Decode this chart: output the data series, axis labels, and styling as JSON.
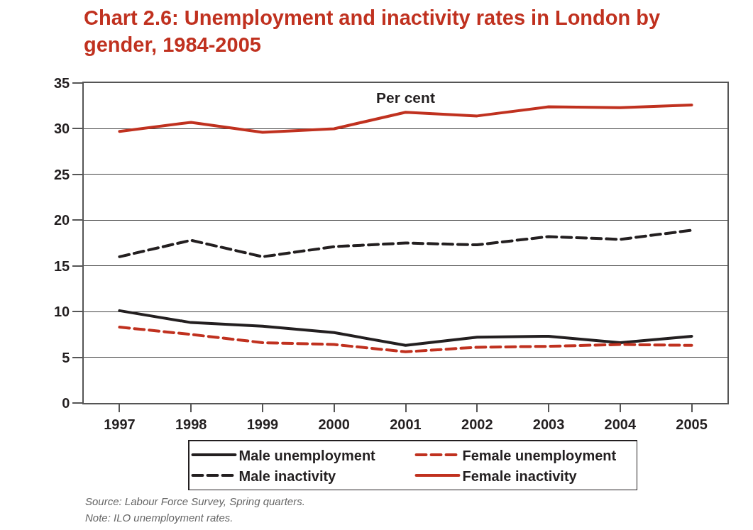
{
  "chart_data": {
    "type": "line",
    "title": "Chart 2.6: Unemployment and inactivity rates in London by gender, 1984-2005",
    "ylabel": "Per cent",
    "categories": [
      "1997",
      "1998",
      "1999",
      "2000",
      "2001",
      "2002",
      "2003",
      "2004",
      "2005"
    ],
    "series": [
      {
        "name": "Male unemployment",
        "color": "#231f20",
        "line_style": "solid",
        "values": [
          10.1,
          8.8,
          8.4,
          7.7,
          6.3,
          7.2,
          7.3,
          6.6,
          7.3
        ]
      },
      {
        "name": "Female unemployment",
        "color": "#c0311f",
        "line_style": "dashed",
        "values": [
          8.3,
          7.5,
          6.6,
          6.4,
          5.6,
          6.1,
          6.2,
          6.4,
          6.3
        ]
      },
      {
        "name": "Male inactivity",
        "color": "#231f20",
        "line_style": "dashed",
        "values": [
          16.0,
          17.8,
          16.0,
          17.1,
          17.5,
          17.3,
          18.2,
          17.9,
          18.9
        ]
      },
      {
        "name": "Female inactivity",
        "color": "#c0311f",
        "line_style": "solid",
        "values": [
          29.7,
          30.7,
          29.6,
          30.0,
          31.8,
          31.4,
          32.4,
          32.3,
          32.6
        ]
      }
    ],
    "ylim": [
      0,
      35
    ],
    "yticks": [
      0,
      5,
      10,
      15,
      20,
      25,
      30,
      35
    ],
    "grid": "y",
    "legend": "bottom",
    "annotations": [
      "Source: Labour Force Survey, Spring quarters.",
      "Note: ILO unemployment rates."
    ]
  }
}
